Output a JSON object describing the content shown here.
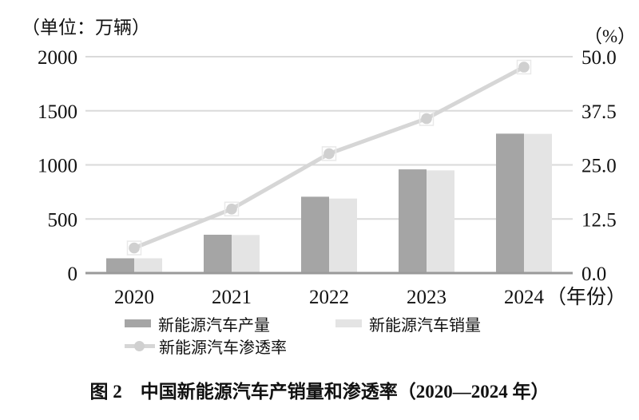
{
  "chart_data": {
    "type": "combo-bar-line",
    "title": "图 2　中国新能源汽车产销量和渗透率（2020—2024 年）",
    "categories": [
      "2020",
      "2021",
      "2022",
      "2023",
      "2024"
    ],
    "x_axis_suffix": "（年份）",
    "series": [
      {
        "name": "新能源汽车产量",
        "type": "bar",
        "axis": "left",
        "values": [
          136.6,
          354.5,
          705.8,
          958.7,
          1288.8
        ]
      },
      {
        "name": "新能源汽车销量",
        "type": "bar",
        "axis": "left",
        "values": [
          136.7,
          352.1,
          688.7,
          949.5,
          1286.6
        ]
      },
      {
        "name": "新能源汽车渗透率",
        "type": "line",
        "axis": "right",
        "values": [
          5.8,
          14.8,
          27.6,
          35.7,
          47.6
        ]
      }
    ],
    "left_axis": {
      "title": "（单位：万辆）",
      "min": 0,
      "max": 2000,
      "ticks": [
        "2000",
        "1500",
        "1000",
        "500",
        "0"
      ]
    },
    "right_axis": {
      "title": "（%）",
      "min": 0,
      "max": 50,
      "ticks": [
        "50.0",
        "37.5",
        "25.0",
        "12.5",
        "0.0"
      ]
    },
    "grid": "horizontal-on",
    "legend_position": "bottom"
  },
  "colors": {
    "bar_production": "#a5a5a5",
    "bar_sales": "#e4e4e4",
    "line": "#d6d6d6",
    "marker": "#d0d0d0",
    "marker_box": "#e9e9e9",
    "grid": "#dadada",
    "baseline": "#9a9a9a",
    "text": "#111111",
    "background": "#ffffff"
  }
}
